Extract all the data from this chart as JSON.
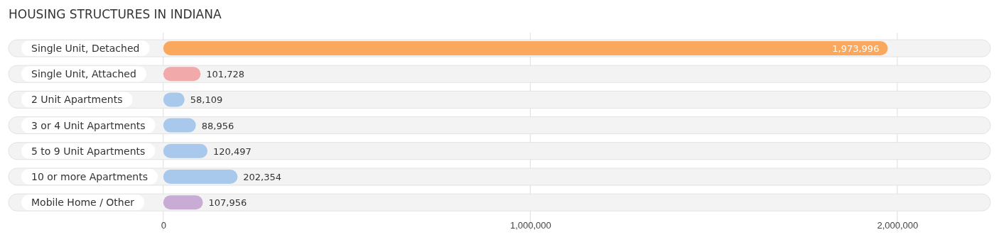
{
  "chart_data": {
    "type": "bar",
    "orientation": "horizontal",
    "title": "HOUSING STRUCTURES IN INDIANA",
    "categories": [
      "Single Unit, Detached",
      "Single Unit, Attached",
      "2 Unit Apartments",
      "3 or 4 Unit Apartments",
      "5 to 9 Unit Apartments",
      "10 or more Apartments",
      "Mobile Home / Other"
    ],
    "values": [
      1973996,
      101728,
      58109,
      88956,
      120497,
      202354,
      107956
    ],
    "colors": [
      "#f9a85e",
      "#f2a9a9",
      "#a8c8ec",
      "#a8c8ec",
      "#a8c8ec",
      "#a8c8ec",
      "#c9acd5"
    ],
    "xlim": [
      -410000,
      2250000
    ],
    "xticks": [
      {
        "value": 0,
        "label": "0"
      },
      {
        "value": 1000000,
        "label": "1,000,000"
      },
      {
        "value": 2000000,
        "label": "2,000,000"
      }
    ],
    "value_labels": [
      "1,973,996",
      "101,728",
      "58,109",
      "88,956",
      "120,497",
      "202,354",
      "107,956"
    ],
    "grid": "x"
  }
}
